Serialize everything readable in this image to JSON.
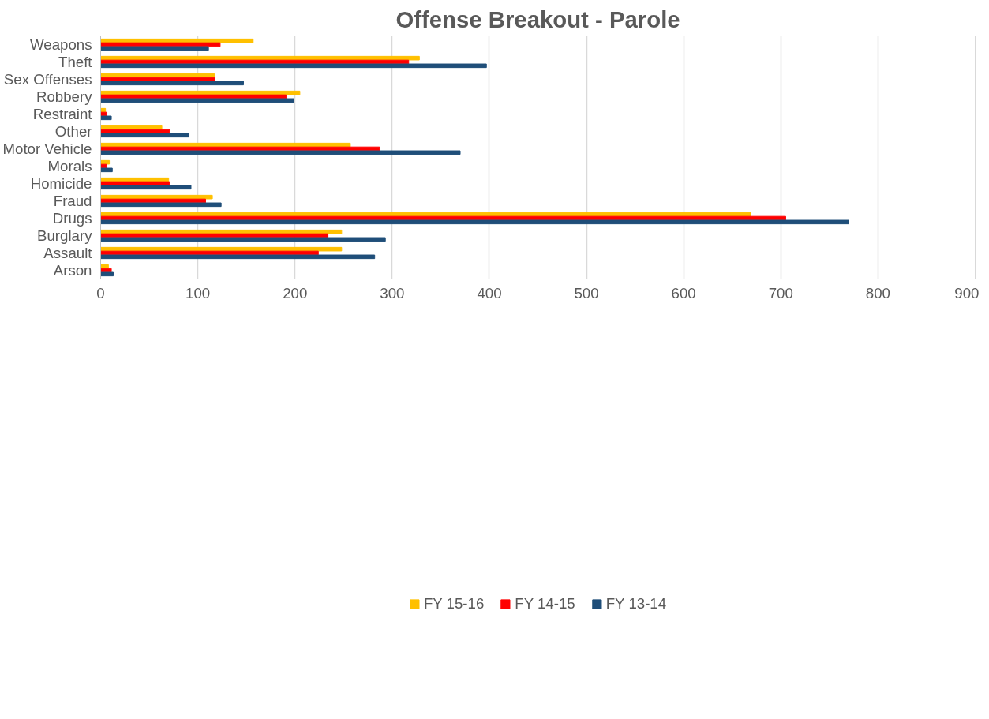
{
  "chart_data": {
    "type": "bar",
    "orientation": "horizontal",
    "title": "Offense Breakout - Parole",
    "categories": [
      "Weapons",
      "Theft",
      "Sex Offenses",
      "Robbery",
      "Restraint",
      "Other",
      "Motor Vehicle",
      "Morals",
      "Homicide",
      "Fraud",
      "Drugs",
      "Burglary",
      "Assault",
      "Arson"
    ],
    "series": [
      {
        "name": "FY 15-16",
        "color": "#ffc000",
        "values": [
          157,
          328,
          117,
          205,
          5,
          63,
          257,
          9,
          70,
          115,
          669,
          248,
          248,
          8
        ]
      },
      {
        "name": "FY 14-15",
        "color": "#ff0000",
        "values": [
          123,
          317,
          117,
          191,
          6,
          71,
          287,
          6,
          71,
          108,
          705,
          234,
          224,
          11
        ]
      },
      {
        "name": "FY 13-14",
        "color": "#1f4e79",
        "values": [
          111,
          397,
          147,
          199,
          11,
          91,
          370,
          12,
          93,
          124,
          770,
          293,
          282,
          13
        ]
      }
    ],
    "xlim": [
      0,
      900
    ],
    "xticks": [
      0,
      100,
      200,
      300,
      400,
      500,
      600,
      700,
      800,
      900
    ],
    "grid": "x",
    "legend": "bottom"
  }
}
